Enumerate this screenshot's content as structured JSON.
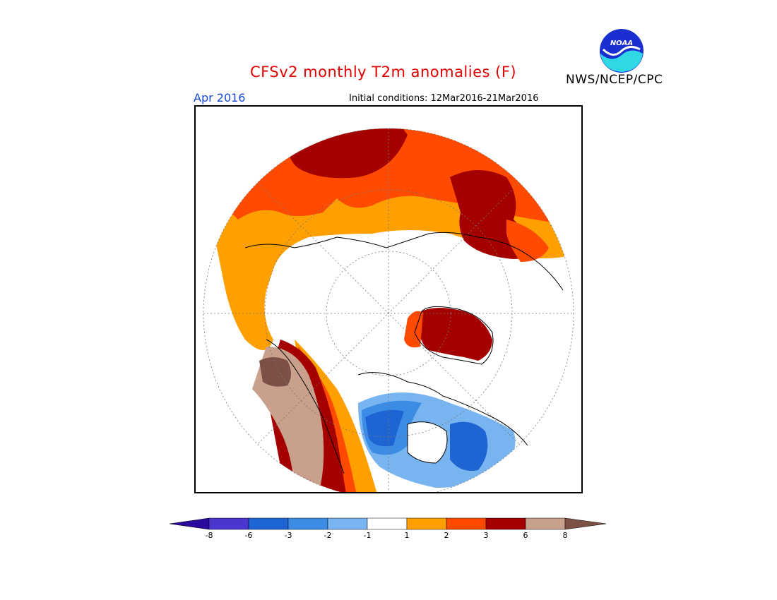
{
  "title": "CFSv2 monthly T2m anomalies (F)",
  "organization": "NWS/NCEP/CPC",
  "logo_text": "NOAA",
  "month": "Apr 2016",
  "initial_conditions": "Initial conditions: 12Mar2016-21Mar2016",
  "colorbar": {
    "colors": [
      "#2a0a9c",
      "#4a36cf",
      "#1e64d2",
      "#3c8ce6",
      "#78b4f0",
      "#ffffff",
      "#ffa000",
      "#ff4a00",
      "#a50000",
      "#c8a08c",
      "#7d5046"
    ],
    "tick_labels": [
      "-8",
      "-6",
      "-3",
      "-2",
      "-1",
      "1",
      "2",
      "3",
      "6",
      "8"
    ]
  },
  "map_colors": {
    "plus_1_2": "#ffa000",
    "plus_2_3": "#ff4a00",
    "plus_3_6": "#a50000",
    "plus_6_8": "#c8a08c",
    "over_8": "#7d5046",
    "minus_1_2": "#78b4f0",
    "minus_2_3": "#3c8ce6",
    "minus_3_6": "#1e64d2"
  }
}
